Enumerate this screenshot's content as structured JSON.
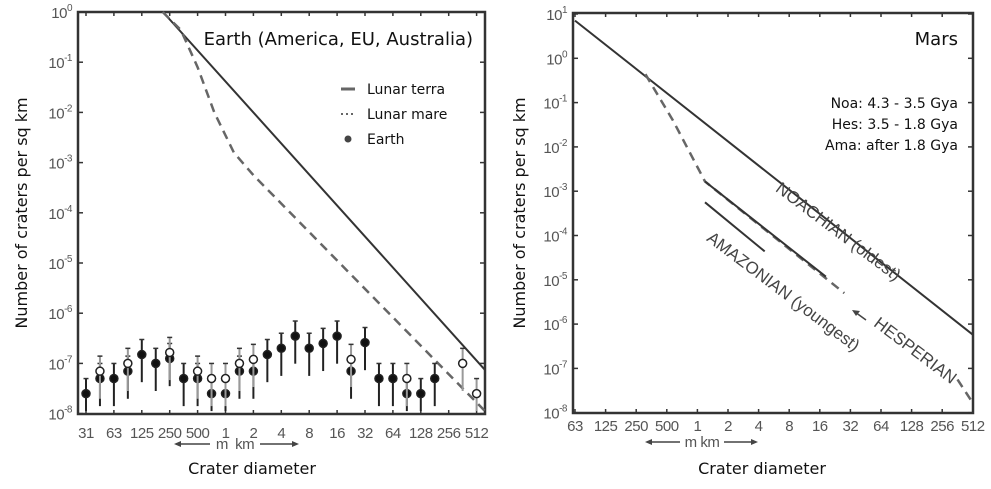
{
  "chart_data": [
    {
      "type": "scatter",
      "title": "Earth (America, EU, Australia)",
      "xlabel": "Crater diameter",
      "ylabel": "Number of craters per sq km",
      "unit_arrow_label": "m  km",
      "x_tick_labels": [
        "31",
        "63",
        "125",
        "250",
        "500",
        "1",
        "2",
        "4",
        "8",
        "16",
        "32",
        "64",
        "128",
        "256",
        "512"
      ],
      "x_scale": "log2, 31 m to 512 km (index 0..14)",
      "y_scale": "log10",
      "y_exponents": [
        0,
        -1,
        -2,
        -3,
        -4,
        -5,
        -6,
        -7,
        -8
      ],
      "ylim": [
        1e-08,
        1
      ],
      "legend": {
        "placement": "top-right",
        "entries": [
          "Lunar terra",
          "Lunar mare",
          "Earth"
        ]
      },
      "series": [
        {
          "name": "Lunar terra",
          "style": "solid",
          "points": [
            [
              2.76,
              0
            ],
            [
              14.3,
              -7.13
            ]
          ]
        },
        {
          "name": "Lunar mare",
          "style": "dashed",
          "points": [
            [
              2.75,
              0
            ],
            [
              3.4,
              -0.36
            ],
            [
              4.0,
              -1.1
            ],
            [
              4.6,
              -2.0
            ],
            [
              5.3,
              -2.8
            ],
            [
              6.0,
              -3.25
            ],
            [
              14.3,
              -7.95
            ]
          ]
        },
        {
          "name": "Earth",
          "style": "points",
          "points": [
            {
              "i": 0,
              "filled": 2.5e-08
            },
            {
              "i": 0.5,
              "filled": 5e-08,
              "open": 7e-08
            },
            {
              "i": 1,
              "filled": 5e-08
            },
            {
              "i": 1.5,
              "filled": 7e-08,
              "open": 1e-07
            },
            {
              "i": 2,
              "filled": 1.5e-07
            },
            {
              "i": 2.5,
              "filled": 1e-07
            },
            {
              "i": 3,
              "filled": 1.25e-07,
              "open": 1.65e-07
            },
            {
              "i": 3.5,
              "filled": 5e-08
            },
            {
              "i": 4,
              "filled": 5e-08,
              "open": 7e-08
            },
            {
              "i": 4.5,
              "filled": 2.5e-08,
              "open": 5e-08
            },
            {
              "i": 5,
              "filled": 2.5e-08,
              "open": 5e-08
            },
            {
              "i": 5.5,
              "filled": 7e-08,
              "open": 1e-07
            },
            {
              "i": 6,
              "filled": 7e-08,
              "open": 1.2e-07
            },
            {
              "i": 6.5,
              "filled": 1.5e-07
            },
            {
              "i": 7,
              "filled": 2e-07
            },
            {
              "i": 7.5,
              "filled": 3.5e-07
            },
            {
              "i": 8,
              "filled": 2e-07
            },
            {
              "i": 8.5,
              "filled": 2.5e-07
            },
            {
              "i": 9,
              "filled": 3.5e-07
            },
            {
              "i": 9.5,
              "filled": 7e-08,
              "open": 1.2e-07
            },
            {
              "i": 10,
              "filled": 2.6e-07
            },
            {
              "i": 10.5,
              "filled": 5e-08
            },
            {
              "i": 11,
              "filled": 5e-08
            },
            {
              "i": 11.5,
              "filled": 2.5e-08,
              "open": 5e-08
            },
            {
              "i": 12,
              "filled": 2.5e-08
            },
            {
              "i": 12.5,
              "filled": 5e-08
            },
            {
              "i": 13.5,
              "open": 1e-07
            },
            {
              "i": 14,
              "open": 2.5e-08
            }
          ]
        }
      ]
    },
    {
      "type": "line",
      "title": "Mars",
      "notes": [
        "Noa: 4.3 - 3.5 Gya",
        "Hes: 3.5 - 1.8 Gya",
        "Ama: after 1.8 Gya"
      ],
      "xlabel": "Crater diameter",
      "ylabel": "Number of craters per sq km",
      "unit_arrow_label": "m km",
      "x_tick_labels": [
        "63",
        "125",
        "250",
        "500",
        "1",
        "2",
        "4",
        "8",
        "16",
        "32",
        "64",
        "128",
        "256",
        "512"
      ],
      "x_scale": "log2, 63 m to 512 km (index 0..13)",
      "y_scale": "log10",
      "y_exponents": [
        1,
        0,
        -1,
        -2,
        -3,
        -4,
        -5,
        -6,
        -7,
        -8
      ],
      "ylim": [
        1e-08,
        10
      ],
      "era_labels": {
        "noachian": "NOACHIAN (oldest)",
        "amazonian": "AMAZONIAN (youngest)",
        "hesperian": "HESPERIAN"
      },
      "series": [
        {
          "name": "Upper bound",
          "style": "solid",
          "points": [
            [
              0,
              0.85
            ],
            [
              13,
              -6.24
            ]
          ]
        },
        {
          "name": "Hesperian",
          "style": "dashed",
          "points": [
            [
              2.3,
              -0.36
            ],
            [
              3.2,
              -1.4
            ],
            [
              4.25,
              -2.78
            ],
            [
              8.8,
              -5.3
            ]
          ]
        },
        {
          "name": "Hesperian tail",
          "style": "dashed",
          "points": [
            [
              12.5,
              -7.25
            ],
            [
              13,
              -7.78
            ]
          ]
        },
        {
          "name": "Noachian",
          "style": "solid",
          "points": [
            [
              4.25,
              -2.78
            ],
            [
              8.2,
              -4.93
            ]
          ]
        },
        {
          "name": "Amazonian",
          "style": "solid",
          "points": [
            [
              4.25,
              -3.25
            ],
            [
              6.2,
              -4.36
            ]
          ]
        }
      ]
    }
  ]
}
